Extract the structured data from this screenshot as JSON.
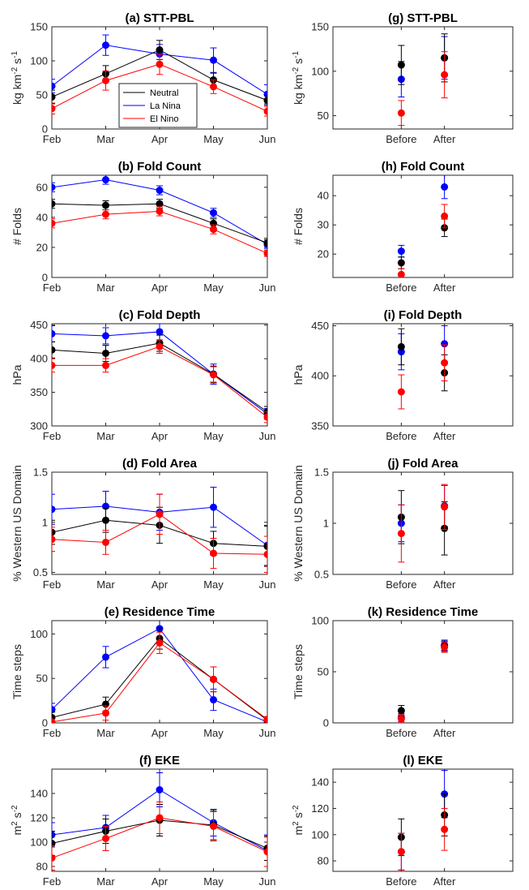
{
  "colors": {
    "Neutral": "#000000",
    "La Nina": "#0000ff",
    "El Nino": "#ff0000"
  },
  "legend": [
    "Neutral",
    "La Nina",
    "El Nino"
  ],
  "chart_data": [
    {
      "id": "a",
      "type": "line",
      "title": "(a) STT-PBL",
      "ylabel_parts": [
        "kg km",
        "-2",
        " s",
        "-1"
      ],
      "categories": [
        "Feb",
        "Mar",
        "Apr",
        "May",
        "Jun"
      ],
      "ylim": [
        0,
        150
      ],
      "yticks": [
        0,
        50,
        100,
        150
      ],
      "legend_position": "inside-lower-left",
      "series": [
        {
          "name": "Neutral",
          "values": [
            47,
            81,
            116,
            72,
            42
          ],
          "errors": [
            10,
            12,
            14,
            10,
            7
          ]
        },
        {
          "name": "La Nina",
          "values": [
            63,
            123,
            110,
            101,
            51
          ],
          "errors": [
            10,
            15,
            14,
            18,
            14
          ]
        },
        {
          "name": "El Nino",
          "values": [
            30,
            71,
            95,
            62,
            26
          ],
          "errors": [
            8,
            14,
            15,
            10,
            7
          ]
        }
      ]
    },
    {
      "id": "b",
      "type": "line",
      "title": "(b) Fold Count",
      "ylabel_parts": [
        "# Folds"
      ],
      "categories": [
        "Feb",
        "Mar",
        "Apr",
        "May",
        "Jun"
      ],
      "ylim": [
        0,
        68
      ],
      "yticks": [
        0,
        20,
        40,
        60
      ],
      "series": [
        {
          "name": "Neutral",
          "values": [
            49,
            48,
            49,
            36,
            23
          ],
          "errors": [
            3,
            3,
            3,
            3,
            3
          ]
        },
        {
          "name": "La Nina",
          "values": [
            60,
            65,
            58,
            43,
            22
          ],
          "errors": [
            3,
            3,
            3,
            3,
            3
          ]
        },
        {
          "name": "El Nino",
          "values": [
            36,
            42,
            44,
            32,
            16
          ],
          "errors": [
            3,
            3,
            3,
            3,
            2
          ]
        }
      ]
    },
    {
      "id": "c",
      "type": "line",
      "title": "(c) Fold Depth",
      "ylabel_parts": [
        "hPa"
      ],
      "categories": [
        "Feb",
        "Mar",
        "Apr",
        "May",
        "Jun"
      ],
      "ylim": [
        300,
        452
      ],
      "yticks": [
        300,
        350,
        400,
        450
      ],
      "series": [
        {
          "name": "Neutral",
          "values": [
            413,
            408,
            423,
            377,
            321
          ],
          "errors": [
            12,
            12,
            12,
            12,
            8
          ]
        },
        {
          "name": "La Nina",
          "values": [
            437,
            434,
            440,
            377,
            318
          ],
          "errors": [
            12,
            12,
            12,
            15,
            8
          ]
        },
        {
          "name": "El Nino",
          "values": [
            390,
            390,
            418,
            376,
            313
          ],
          "errors": [
            10,
            10,
            10,
            12,
            8
          ]
        }
      ]
    },
    {
      "id": "d",
      "type": "line",
      "title": "(d) Fold Area",
      "ylabel_parts": [
        "% Western US Domain"
      ],
      "categories": [
        "Feb",
        "Mar",
        "Apr",
        "May",
        "Jun"
      ],
      "ylim": [
        0.48,
        1.5
      ],
      "yticks": [
        0.5,
        1,
        1.5
      ],
      "series": [
        {
          "name": "Neutral",
          "values": [
            0.9,
            1.02,
            0.97,
            0.79,
            0.76
          ],
          "errors": [
            0.12,
            0.12,
            0.18,
            0.12,
            0.2
          ]
        },
        {
          "name": "La Nina",
          "values": [
            1.13,
            1.16,
            1.1,
            1.15,
            0.77
          ],
          "errors": [
            0.15,
            0.15,
            0.18,
            0.2,
            0.2
          ]
        },
        {
          "name": "El Nino",
          "values": [
            0.83,
            0.8,
            1.08,
            0.69,
            0.68
          ],
          "errors": [
            0.12,
            0.12,
            0.2,
            0.15,
            0.18
          ]
        }
      ]
    },
    {
      "id": "e",
      "type": "line",
      "title": "(e) Residence Time",
      "ylabel_parts": [
        "Time steps"
      ],
      "categories": [
        "Feb",
        "Mar",
        "Apr",
        "May",
        "Jun"
      ],
      "ylim": [
        0,
        115
      ],
      "yticks": [
        0,
        50,
        100
      ],
      "series": [
        {
          "name": "Neutral",
          "values": [
            6,
            21,
            95,
            49,
            3
          ],
          "errors": [
            6,
            8,
            12,
            14,
            3
          ]
        },
        {
          "name": "La Nina",
          "values": [
            15,
            74,
            106,
            26,
            1
          ],
          "errors": [
            7,
            12,
            10,
            12,
            2
          ]
        },
        {
          "name": "El Nino",
          "values": [
            1,
            11,
            90,
            49,
            4
          ],
          "errors": [
            3,
            8,
            12,
            14,
            3
          ]
        }
      ]
    },
    {
      "id": "f",
      "type": "line",
      "title": "(f) EKE",
      "ylabel_parts": [
        "m",
        "2",
        " s",
        "-2"
      ],
      "categories": [
        "Feb",
        "Mar",
        "Apr",
        "May",
        "Jun"
      ],
      "ylim": [
        76,
        160
      ],
      "yticks": [
        80,
        100,
        120,
        140
      ],
      "series": [
        {
          "name": "Neutral",
          "values": [
            99,
            109,
            118,
            114,
            95
          ],
          "errors": [
            10,
            10,
            13,
            12,
            10
          ]
        },
        {
          "name": "La Nina",
          "values": [
            106,
            112,
            143,
            116,
            93
          ],
          "errors": [
            10,
            10,
            14,
            11,
            13
          ]
        },
        {
          "name": "El Nino",
          "values": [
            87,
            103,
            120,
            113,
            92
          ],
          "errors": [
            10,
            10,
            13,
            12,
            12
          ]
        }
      ]
    },
    {
      "id": "g",
      "type": "scatter",
      "title": "(g) STT-PBL",
      "ylabel_parts": [
        "kg km",
        "-2",
        " s",
        "-1"
      ],
      "categories": [
        "Before",
        "After"
      ],
      "ylim": [
        35,
        150
      ],
      "yticks": [
        50,
        100,
        150
      ],
      "series": [
        {
          "name": "Neutral",
          "values": [
            107,
            115
          ],
          "errors": [
            22,
            27
          ]
        },
        {
          "name": "La Nina",
          "values": [
            91,
            115
          ],
          "errors": [
            20,
            24
          ]
        },
        {
          "name": "El Nino",
          "values": [
            53,
            96
          ],
          "errors": [
            14,
            26
          ]
        }
      ]
    },
    {
      "id": "h",
      "type": "scatter",
      "title": "(h) Fold Count",
      "ylabel_parts": [
        "# Folds"
      ],
      "categories": [
        "Before",
        "After"
      ],
      "ylim": [
        12,
        47
      ],
      "yticks": [
        20,
        30,
        40
      ],
      "series": [
        {
          "name": "Neutral",
          "values": [
            17,
            29
          ],
          "errors": [
            2,
            3
          ]
        },
        {
          "name": "La Nina",
          "values": [
            21,
            43
          ],
          "errors": [
            2,
            4
          ]
        },
        {
          "name": "El Nino",
          "values": [
            13,
            33
          ],
          "errors": [
            2,
            4
          ]
        }
      ]
    },
    {
      "id": "i",
      "type": "scatter",
      "title": "(i) Fold Depth",
      "ylabel_parts": [
        "hPa"
      ],
      "categories": [
        "Before",
        "After"
      ],
      "ylim": [
        350,
        452
      ],
      "yticks": [
        350,
        400,
        450
      ],
      "series": [
        {
          "name": "Neutral",
          "values": [
            429,
            403
          ],
          "errors": [
            18,
            18
          ]
        },
        {
          "name": "La Nina",
          "values": [
            424,
            432
          ],
          "errors": [
            18,
            18
          ]
        },
        {
          "name": "El Nino",
          "values": [
            384,
            413
          ],
          "errors": [
            17,
            18
          ]
        }
      ]
    },
    {
      "id": "j",
      "type": "scatter",
      "title": "(j) Fold Area",
      "ylabel_parts": [
        "% Western US Domain"
      ],
      "categories": [
        "Before",
        "After"
      ],
      "ylim": [
        0.5,
        1.5
      ],
      "yticks": [
        0.5,
        1,
        1.5
      ],
      "series": [
        {
          "name": "Neutral",
          "values": [
            1.06,
            0.95
          ],
          "errors": [
            0.26,
            0.26
          ]
        },
        {
          "name": "La Nina",
          "values": [
            1.0,
            1.17
          ],
          "errors": [
            0.18,
            0.2
          ]
        },
        {
          "name": "El Nino",
          "values": [
            0.9,
            1.16
          ],
          "errors": [
            0.28,
            0.22
          ]
        }
      ]
    },
    {
      "id": "k",
      "type": "scatter",
      "title": "(k) Residence Time",
      "ylabel_parts": [
        "Time steps"
      ],
      "categories": [
        "Before",
        "After"
      ],
      "ylim": [
        0,
        100
      ],
      "yticks": [
        0,
        50,
        100
      ],
      "series": [
        {
          "name": "Neutral",
          "values": [
            12,
            75
          ],
          "errors": [
            5,
            5
          ]
        },
        {
          "name": "La Nina",
          "values": [
            5,
            76
          ],
          "errors": [
            4,
            5
          ]
        },
        {
          "name": "El Nino",
          "values": [
            4,
            74
          ],
          "errors": [
            4,
            5
          ]
        }
      ]
    },
    {
      "id": "l",
      "type": "scatter",
      "title": "(l) EKE",
      "ylabel_parts": [
        "m",
        "2",
        " s",
        "-2"
      ],
      "categories": [
        "Before",
        "After"
      ],
      "ylim": [
        72,
        150
      ],
      "yticks": [
        80,
        100,
        120,
        140
      ],
      "series": [
        {
          "name": "Neutral",
          "values": [
            98,
            115
          ],
          "errors": [
            14,
            16
          ]
        },
        {
          "name": "La Nina",
          "values": [
            87,
            131
          ],
          "errors": [
            14,
            18
          ]
        },
        {
          "name": "El Nino",
          "values": [
            87,
            104
          ],
          "errors": [
            14,
            16
          ]
        }
      ]
    }
  ]
}
